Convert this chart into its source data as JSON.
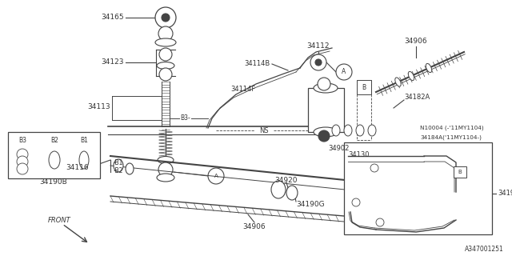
{
  "bg_color": "#ffffff",
  "line_color": "#444444",
  "text_color": "#333333",
  "diagram_id": "A347001251",
  "fig_width": 6.4,
  "fig_height": 3.2,
  "dpi": 100,
  "xlim": [
    0,
    640
  ],
  "ylim": [
    0,
    320
  ]
}
